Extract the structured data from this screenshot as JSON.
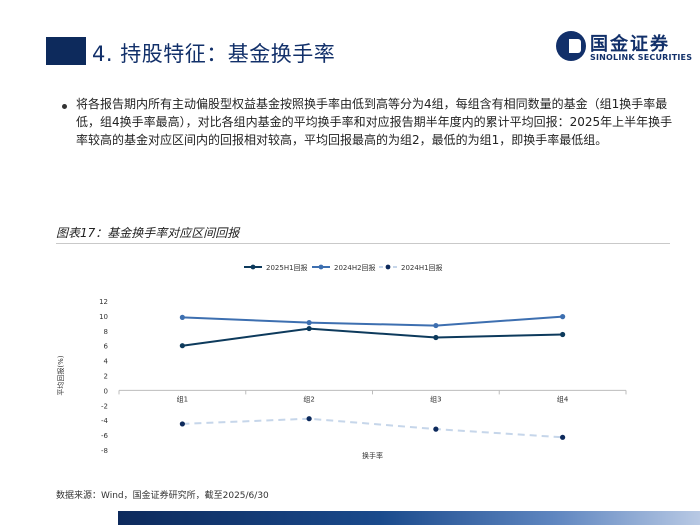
{
  "header": {
    "title": "4. 持股特征：基金换手率"
  },
  "logo": {
    "cn": "国金证券",
    "en": "SINOLINK SECURITIES"
  },
  "body": {
    "bullet": "将各报告期内所有主动偏股型权益基金按照换手率由低到高等分为4组，每组含有相同数量的基金（组1换手率最低，组4换手率最高），对比各组内基金的平均换手率和对应报告期半年度内的累计平均回报：2025年上半年换手率较高的基金对应区间内的回报相对较高，平均回报最高的为组2，最低的为组1，即换手率最低组。"
  },
  "figure": {
    "title": "图表17：基金换手率对应区间回报",
    "source": "数据来源：Wind，国金证券研究所，截至2025/6/30"
  },
  "chart_data": {
    "type": "line",
    "categories": [
      "组1",
      "组2",
      "组3",
      "组4"
    ],
    "series": [
      {
        "name": "2025H1回报",
        "values": [
          6.0,
          8.3,
          7.1,
          7.5
        ],
        "color": "#0d3a5c",
        "style": "solid"
      },
      {
        "name": "2024H2回报",
        "values": [
          9.8,
          9.1,
          8.7,
          9.9
        ],
        "color": "#3d6fb0",
        "style": "solid"
      },
      {
        "name": "2024H1回报",
        "values": [
          -4.5,
          -3.8,
          -5.2,
          -6.3
        ],
        "color": "#c6d6ea",
        "style": "dashed"
      }
    ],
    "ylim": [
      -8,
      12
    ],
    "yticks": [
      -8,
      -6,
      -4,
      -2,
      0,
      2,
      4,
      6,
      8,
      10,
      12
    ],
    "xlabel": "换手率",
    "ylabel": "平均回报(%)",
    "legend": "top-center",
    "grid": false
  }
}
